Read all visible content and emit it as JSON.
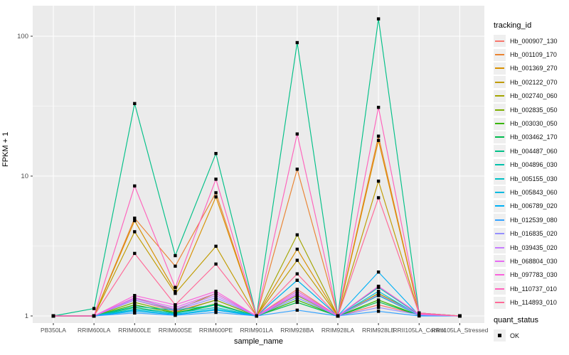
{
  "chart_data": {
    "type": "line",
    "title": "",
    "xlabel": "sample_name",
    "ylabel": "FPKM + 1",
    "yscale": "log10",
    "ylim": [
      1,
      160
    ],
    "yticks": [
      1,
      10,
      100
    ],
    "ytick_labels": [
      "1",
      "10",
      "100"
    ],
    "minor_gridlines_at": [
      3.162,
      31.62
    ],
    "grid": "on",
    "panel_background": "#EBEBEB",
    "gridline_color": "#FFFFFF",
    "tick_label_color": "#4D4D4D",
    "point_shape": "filled-square",
    "point_color": "#000000",
    "legend_position": "right",
    "categories": [
      "PB350LA",
      "RRIM600LA",
      "RRIM600LE",
      "RRIM600SE",
      "RRIM600PE",
      "RRIM901LA",
      "RRIM928BA",
      "RRIM928LA",
      "RRIM928LE",
      "RRII105LA_Control",
      "RRII105LA_Stressed"
    ],
    "series": [
      {
        "name": "Hb_000907_130",
        "color": "#F8766D",
        "values": [
          1,
          1,
          1.3,
          1.08,
          1.3,
          1,
          1.55,
          1,
          1.2,
          1.02,
          1
        ]
      },
      {
        "name": "Hb_001109_170",
        "color": "#EA8331",
        "values": [
          1,
          1,
          5.0,
          2.27,
          7.6,
          1,
          11.2,
          1,
          19.3,
          1.05,
          1
        ]
      },
      {
        "name": "Hb_001369_270",
        "color": "#D89000",
        "values": [
          1,
          1,
          4.8,
          1.5,
          7.1,
          1,
          3.0,
          1,
          18.0,
          1.05,
          1
        ]
      },
      {
        "name": "Hb_002122_070",
        "color": "#C09B00",
        "values": [
          1,
          1,
          4.0,
          1.45,
          3.15,
          1,
          2.5,
          1,
          9.2,
          1.04,
          1
        ]
      },
      {
        "name": "Hb_002740_060",
        "color": "#A3A500",
        "values": [
          1,
          1,
          1.35,
          1.1,
          1.45,
          1,
          3.8,
          1,
          1.45,
          1.02,
          1
        ]
      },
      {
        "name": "Hb_002835_050",
        "color": "#7CAE00",
        "values": [
          1,
          1,
          1.25,
          1.06,
          1.3,
          1,
          1.4,
          1,
          1.4,
          1.02,
          1
        ]
      },
      {
        "name": "Hb_003030_050",
        "color": "#39B600",
        "values": [
          1,
          1,
          1.2,
          1.05,
          1.22,
          1,
          1.3,
          1,
          1.3,
          1.01,
          1
        ]
      },
      {
        "name": "Hb_003462_170",
        "color": "#00BB4E",
        "values": [
          1,
          1,
          1.15,
          1.04,
          1.2,
          1,
          1.25,
          1,
          1.26,
          1.01,
          1
        ]
      },
      {
        "name": "Hb_004487_060",
        "color": "#00C087",
        "values": [
          1,
          1.13,
          33,
          2.7,
          14.5,
          1,
          90,
          1,
          133,
          1.05,
          1
        ]
      },
      {
        "name": "Hb_004896_030",
        "color": "#00C1AB",
        "values": [
          1,
          1,
          1.17,
          1.1,
          1.2,
          1,
          1.8,
          1,
          1.6,
          1.02,
          1
        ]
      },
      {
        "name": "Hb_005155_030",
        "color": "#00BFC4",
        "values": [
          1,
          1,
          1.12,
          1.05,
          1.15,
          1,
          1.35,
          1,
          1.4,
          1.01,
          1
        ]
      },
      {
        "name": "Hb_005843_060",
        "color": "#00BAE0",
        "values": [
          1,
          1,
          1.1,
          1.03,
          1.12,
          1,
          1.5,
          1,
          1.5,
          1.01,
          1
        ]
      },
      {
        "name": "Hb_006789_020",
        "color": "#00B0F6",
        "values": [
          1,
          1,
          1.08,
          1.02,
          1.1,
          1,
          1.8,
          1,
          2.06,
          1.01,
          1
        ]
      },
      {
        "name": "Hb_012539_080",
        "color": "#35A2FF",
        "values": [
          1,
          1,
          1.05,
          1.01,
          1.06,
          1,
          1.1,
          1,
          1.08,
          1,
          1
        ]
      },
      {
        "name": "Hb_016835_020",
        "color": "#9590FF",
        "values": [
          1,
          1,
          1.3,
          1.1,
          1.35,
          1,
          1.35,
          1,
          1.15,
          1.02,
          1
        ]
      },
      {
        "name": "Hb_039435_020",
        "color": "#C77CFF",
        "values": [
          1,
          1,
          1.33,
          1.12,
          1.4,
          1,
          1.42,
          1,
          1.42,
          1.02,
          1
        ]
      },
      {
        "name": "Hb_068804_030",
        "color": "#E76BF3",
        "values": [
          1,
          1,
          1.35,
          1.15,
          1.45,
          1,
          1.45,
          1,
          1.63,
          1.03,
          1
        ]
      },
      {
        "name": "Hb_097783_030",
        "color": "#FA62DB",
        "values": [
          1,
          1,
          1.4,
          1.2,
          1.5,
          1,
          1.5,
          1,
          1.63,
          1.03,
          1
        ]
      },
      {
        "name": "Hb_110737_010",
        "color": "#FF62BC",
        "values": [
          1,
          1,
          8.5,
          1.6,
          9.5,
          1,
          20,
          1,
          31,
          1.05,
          1
        ]
      },
      {
        "name": "Hb_114893_010",
        "color": "#FF6A98",
        "values": [
          1,
          1,
          2.8,
          1.2,
          2.35,
          1,
          2.0,
          1,
          7.0,
          1.04,
          1
        ]
      }
    ]
  },
  "legend": {
    "tracking_title": "tracking_id",
    "quant_title": "quant_status",
    "quant_items": [
      {
        "label": "OK"
      }
    ]
  }
}
